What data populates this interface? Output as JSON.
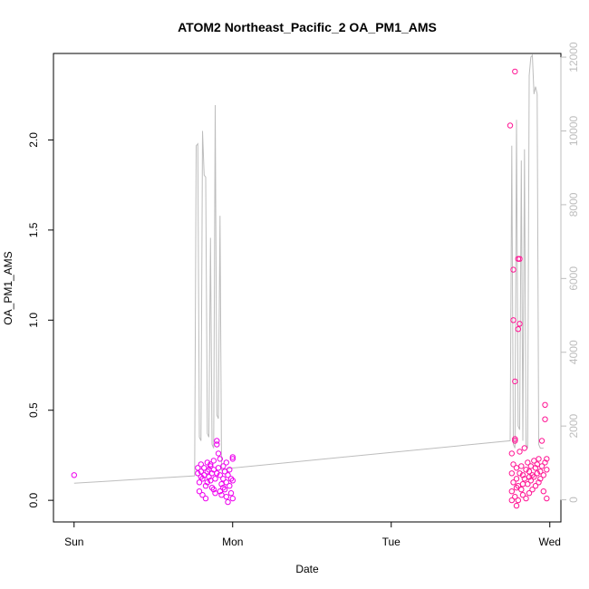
{
  "chart_data": {
    "type": "scatter",
    "title": "ATOM2 Northeast_Pacific_2 OA_PM1_AMS",
    "xlabel": "Date",
    "ylabel": "OA_PM1_AMS",
    "x_ticks": [
      "Sun",
      "Mon",
      "Tue",
      "Wed"
    ],
    "x_tick_values": [
      0,
      1,
      2,
      3
    ],
    "xlim": [
      -0.13,
      3.07
    ],
    "ylim": [
      -0.12,
      2.48
    ],
    "y_ticks": [
      0.0,
      0.5,
      1.0,
      1.5,
      2.0
    ],
    "y_tick_labels": [
      "0.0",
      "0.5",
      "1.0",
      "1.5",
      "2.0"
    ],
    "right_axis": {
      "ylim": [
        -600,
        12100
      ],
      "ticks": [
        0,
        2000,
        4000,
        6000,
        8000,
        10000,
        12000
      ],
      "tick_labels": [
        "0",
        "2000",
        "4000",
        "6000",
        "8000",
        "10000",
        "12000"
      ]
    },
    "grid": false,
    "colors": {
      "points_cluster1": "#ee00ee",
      "points_cluster2": "#ff1493",
      "line": "#bdbdbd",
      "axis_right": "#bdbdbd"
    },
    "series": [
      {
        "kind": "points",
        "values": [
          {
            "x": 0.0,
            "y": 0.14
          },
          {
            "x": 0.78,
            "y": 0.15
          },
          {
            "x": 0.78,
            "y": 0.18
          },
          {
            "x": 0.79,
            "y": 0.1
          },
          {
            "x": 0.79,
            "y": 0.05
          },
          {
            "x": 0.8,
            "y": 0.2
          },
          {
            "x": 0.8,
            "y": 0.16
          },
          {
            "x": 0.81,
            "y": 0.12
          },
          {
            "x": 0.81,
            "y": 0.03
          },
          {
            "x": 0.82,
            "y": 0.18
          },
          {
            "x": 0.82,
            "y": 0.14
          },
          {
            "x": 0.83,
            "y": 0.08
          },
          {
            "x": 0.83,
            "y": 0.01
          },
          {
            "x": 0.84,
            "y": 0.16
          },
          {
            "x": 0.84,
            "y": 0.21
          },
          {
            "x": 0.85,
            "y": 0.13
          },
          {
            "x": 0.85,
            "y": 0.17
          },
          {
            "x": 0.86,
            "y": 0.19
          },
          {
            "x": 0.86,
            "y": 0.11
          },
          {
            "x": 0.87,
            "y": 0.15
          },
          {
            "x": 0.87,
            "y": 0.07
          },
          {
            "x": 0.88,
            "y": 0.22
          },
          {
            "x": 0.88,
            "y": 0.17
          },
          {
            "x": 0.89,
            "y": 0.12
          },
          {
            "x": 0.89,
            "y": 0.04
          },
          {
            "x": 0.9,
            "y": 0.33
          },
          {
            "x": 0.9,
            "y": 0.31
          },
          {
            "x": 0.91,
            "y": 0.26
          },
          {
            "x": 0.91,
            "y": 0.18
          },
          {
            "x": 0.92,
            "y": 0.23
          },
          {
            "x": 0.92,
            "y": 0.14
          },
          {
            "x": 0.93,
            "y": 0.09
          },
          {
            "x": 0.93,
            "y": 0.03
          },
          {
            "x": 0.94,
            "y": 0.19
          },
          {
            "x": 0.94,
            "y": 0.12
          },
          {
            "x": 0.95,
            "y": 0.16
          },
          {
            "x": 0.95,
            "y": 0.06
          },
          {
            "x": 0.96,
            "y": 0.21
          },
          {
            "x": 0.96,
            "y": 0.1
          },
          {
            "x": 0.97,
            "y": 0.14
          },
          {
            "x": 0.97,
            "y": -0.01
          },
          {
            "x": 0.98,
            "y": 0.17
          },
          {
            "x": 0.98,
            "y": 0.08
          },
          {
            "x": 0.99,
            "y": 0.04
          },
          {
            "x": 0.99,
            "y": 0.12
          },
          {
            "x": 1.0,
            "y": 0.24
          },
          {
            "x": 1.0,
            "y": 0.23
          },
          {
            "x": 1.0,
            "y": 0.11
          },
          {
            "x": 1.0,
            "y": 0.01
          },
          {
            "x": 0.8,
            "y": 0.13
          },
          {
            "x": 0.84,
            "y": 0.1
          },
          {
            "x": 0.88,
            "y": 0.06
          },
          {
            "x": 0.92,
            "y": 0.05
          },
          {
            "x": 0.96,
            "y": 0.02
          },
          {
            "x": 0.86,
            "y": 0.2
          },
          {
            "x": 0.9,
            "y": 0.15
          },
          {
            "x": 0.94,
            "y": 0.07
          }
        ]
      },
      {
        "kind": "points",
        "values": [
          {
            "x": 2.75,
            "y": 2.08
          },
          {
            "x": 2.76,
            "y": 0.26
          },
          {
            "x": 2.76,
            "y": 0.15
          },
          {
            "x": 2.76,
            "y": 0.05
          },
          {
            "x": 2.77,
            "y": 1.28
          },
          {
            "x": 2.77,
            "y": 1.0
          },
          {
            "x": 2.77,
            "y": 0.2
          },
          {
            "x": 2.77,
            "y": 0.1
          },
          {
            "x": 2.78,
            "y": 2.38
          },
          {
            "x": 2.78,
            "y": 0.66
          },
          {
            "x": 2.78,
            "y": 0.34
          },
          {
            "x": 2.78,
            "y": 0.33
          },
          {
            "x": 2.78,
            "y": 0.02
          },
          {
            "x": 2.79,
            "y": 0.18
          },
          {
            "x": 2.79,
            "y": 0.12
          },
          {
            "x": 2.79,
            "y": -0.03
          },
          {
            "x": 2.8,
            "y": 1.34
          },
          {
            "x": 2.8,
            "y": 0.95
          },
          {
            "x": 2.8,
            "y": 0.08
          },
          {
            "x": 2.8,
            "y": 0.0
          },
          {
            "x": 2.81,
            "y": 1.34
          },
          {
            "x": 2.81,
            "y": 0.98
          },
          {
            "x": 2.81,
            "y": 0.27
          },
          {
            "x": 2.81,
            "y": 0.15
          },
          {
            "x": 2.82,
            "y": 0.19
          },
          {
            "x": 2.82,
            "y": 0.06
          },
          {
            "x": 2.83,
            "y": 0.14
          },
          {
            "x": 2.83,
            "y": 0.03
          },
          {
            "x": 2.84,
            "y": 0.29
          },
          {
            "x": 2.84,
            "y": 0.12
          },
          {
            "x": 2.85,
            "y": 0.17
          },
          {
            "x": 2.85,
            "y": 0.01
          },
          {
            "x": 2.86,
            "y": 0.21
          },
          {
            "x": 2.86,
            "y": 0.09
          },
          {
            "x": 2.87,
            "y": 0.16
          },
          {
            "x": 2.87,
            "y": 0.04
          },
          {
            "x": 2.88,
            "y": 0.19
          },
          {
            "x": 2.88,
            "y": 0.11
          },
          {
            "x": 2.89,
            "y": 0.14
          },
          {
            "x": 2.89,
            "y": 0.06
          },
          {
            "x": 2.9,
            "y": 0.22
          },
          {
            "x": 2.9,
            "y": 0.13
          },
          {
            "x": 2.91,
            "y": 0.18
          },
          {
            "x": 2.91,
            "y": 0.08
          },
          {
            "x": 2.92,
            "y": 0.2
          },
          {
            "x": 2.92,
            "y": 0.15
          },
          {
            "x": 2.93,
            "y": 0.23
          },
          {
            "x": 2.93,
            "y": 0.1
          },
          {
            "x": 2.94,
            "y": 0.16
          },
          {
            "x": 2.94,
            "y": 0.12
          },
          {
            "x": 2.95,
            "y": 0.33
          },
          {
            "x": 2.95,
            "y": 0.19
          },
          {
            "x": 2.96,
            "y": 0.14
          },
          {
            "x": 2.96,
            "y": 0.05
          },
          {
            "x": 2.97,
            "y": 0.53
          },
          {
            "x": 2.97,
            "y": 0.45
          },
          {
            "x": 2.97,
            "y": 0.21
          },
          {
            "x": 2.98,
            "y": 0.17
          },
          {
            "x": 2.98,
            "y": 0.01
          },
          {
            "x": 2.98,
            "y": 0.23
          },
          {
            "x": 2.76,
            "y": 0.0
          },
          {
            "x": 2.79,
            "y": 0.07
          },
          {
            "x": 2.83,
            "y": 0.09
          },
          {
            "x": 2.87,
            "y": 0.13
          }
        ]
      },
      {
        "kind": "line",
        "axis": "right",
        "values": [
          {
            "x": 0.0,
            "y": 450
          },
          {
            "x": 0.76,
            "y": 650
          },
          {
            "x": 0.77,
            "y": 9600
          },
          {
            "x": 0.78,
            "y": 9650
          },
          {
            "x": 0.79,
            "y": 1700
          },
          {
            "x": 0.8,
            "y": 1600
          },
          {
            "x": 0.81,
            "y": 10000
          },
          {
            "x": 0.82,
            "y": 8800
          },
          {
            "x": 0.83,
            "y": 8750
          },
          {
            "x": 0.84,
            "y": 1800
          },
          {
            "x": 0.85,
            "y": 1700
          },
          {
            "x": 0.86,
            "y": 7100
          },
          {
            "x": 0.87,
            "y": 1500
          },
          {
            "x": 0.88,
            "y": 1400
          },
          {
            "x": 0.89,
            "y": 10700
          },
          {
            "x": 0.9,
            "y": 2300
          },
          {
            "x": 0.91,
            "y": 2200
          },
          {
            "x": 0.92,
            "y": 7700
          },
          {
            "x": 0.93,
            "y": 800
          },
          {
            "x": 0.97,
            "y": 850
          },
          {
            "x": 2.75,
            "y": 1600
          },
          {
            "x": 2.76,
            "y": 9600
          },
          {
            "x": 2.77,
            "y": 1500
          },
          {
            "x": 2.78,
            "y": 1400
          },
          {
            "x": 2.79,
            "y": 10300
          },
          {
            "x": 2.8,
            "y": 2000
          },
          {
            "x": 2.81,
            "y": 1900
          },
          {
            "x": 2.82,
            "y": 9200
          },
          {
            "x": 2.83,
            "y": 1600
          },
          {
            "x": 2.84,
            "y": 9500
          },
          {
            "x": 2.85,
            "y": 1500
          },
          {
            "x": 2.86,
            "y": 1400
          },
          {
            "x": 2.87,
            "y": 11500
          },
          {
            "x": 2.88,
            "y": 12000
          },
          {
            "x": 2.89,
            "y": 12050
          },
          {
            "x": 2.9,
            "y": 11000
          },
          {
            "x": 2.91,
            "y": 11200
          },
          {
            "x": 2.92,
            "y": 11000
          },
          {
            "x": 2.93,
            "y": 1500
          },
          {
            "x": 2.94,
            "y": 1400
          },
          {
            "x": 2.96,
            "y": 1400
          }
        ]
      }
    ]
  }
}
